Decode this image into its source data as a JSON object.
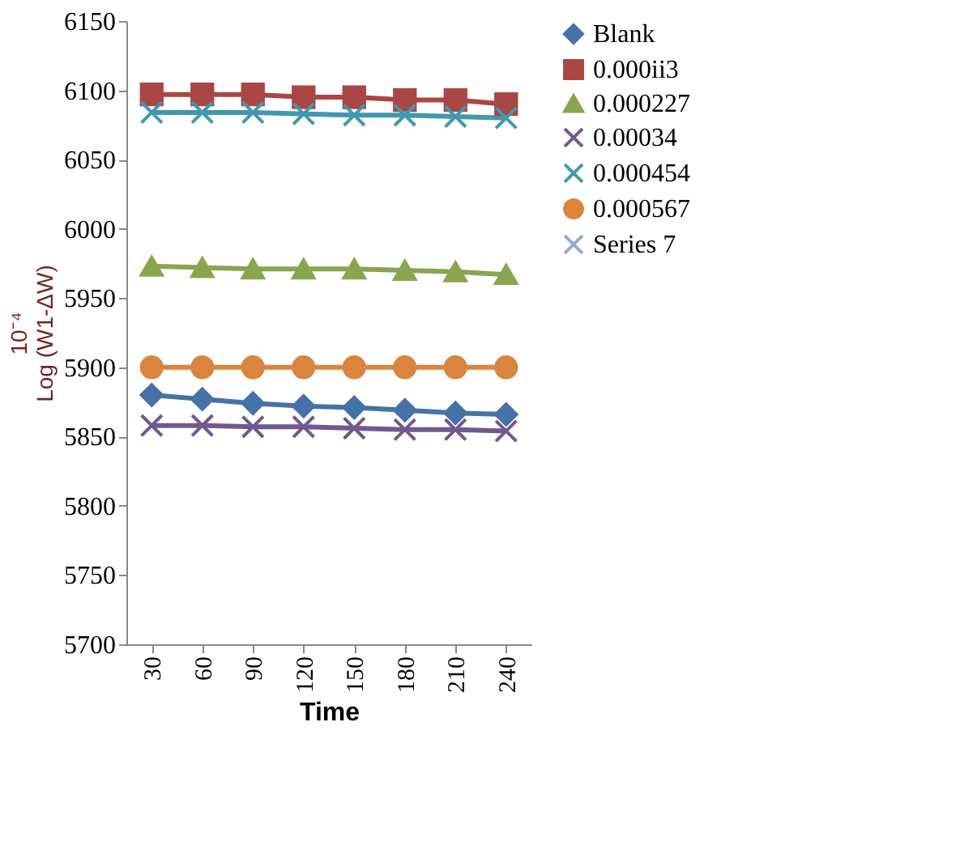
{
  "chart_data": {
    "type": "line",
    "xlabel": "Time",
    "ylabel": "10⁻⁴\nLog (W1-ΔW)",
    "categories": [
      "30",
      "60",
      "90",
      "120",
      "150",
      "180",
      "210",
      "240"
    ],
    "series": [
      {
        "name": "Blank",
        "color": "#4572a7",
        "marker": "diamond",
        "values": [
          5880,
          5877,
          5874,
          5872,
          5871,
          5869,
          5867,
          5866
        ]
      },
      {
        "name": "0.000ii3",
        "color": "#aa4643",
        "marker": "square",
        "values": [
          6097,
          6097,
          6097,
          6095,
          6095,
          6093,
          6093,
          6090
        ]
      },
      {
        "name": "0.000227",
        "color": "#89a54e",
        "marker": "triangle",
        "values": [
          5973,
          5972,
          5971,
          5971,
          5971,
          5970,
          5969,
          5967
        ]
      },
      {
        "name": "0.00034",
        "color": "#71588f",
        "marker": "cross",
        "values": [
          5858,
          5858,
          5857,
          5857,
          5856,
          5855,
          5855,
          5854
        ]
      },
      {
        "name": "0.000454",
        "color": "#4198af",
        "marker": "cross",
        "values": [
          6084,
          6084,
          6084,
          6083,
          6082,
          6082,
          6081,
          6080
        ]
      },
      {
        "name": "0.000567",
        "color": "#db843d",
        "marker": "circle",
        "values": [
          5900,
          5900,
          5900,
          5900,
          5900,
          5900,
          5900,
          5900
        ]
      },
      {
        "name": "Series 7",
        "color": "#93a9cf",
        "marker": "cross",
        "values": [
          null,
          null,
          null,
          null,
          null,
          null,
          null,
          null
        ]
      }
    ],
    "ylim": [
      5700,
      6150
    ],
    "yticks": [
      5700,
      5750,
      5800,
      5850,
      5900,
      5950,
      6000,
      6050,
      6100,
      6150
    ],
    "line_style": "solid",
    "grid": false,
    "legend": "right"
  }
}
